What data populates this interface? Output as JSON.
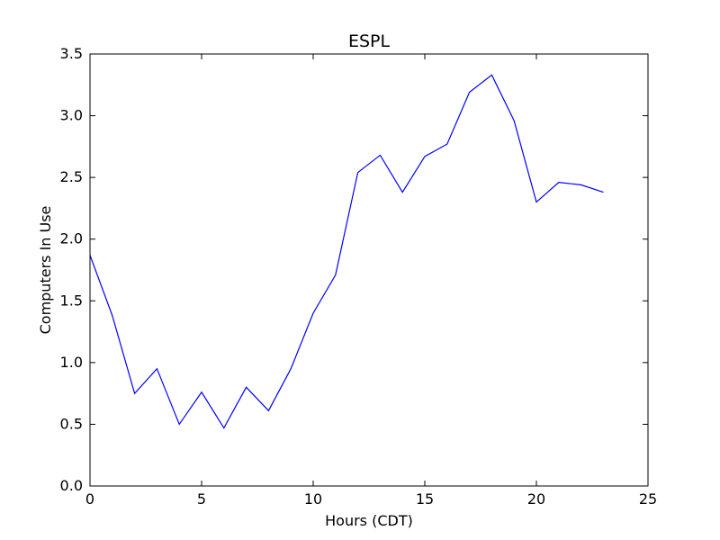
{
  "chart_data": {
    "type": "line",
    "title": "ESPL",
    "xlabel": "Hours (CDT)",
    "ylabel": "Computers In Use",
    "xlim": [
      0,
      25
    ],
    "ylim": [
      0,
      3.5
    ],
    "xticks": [
      "0",
      "5",
      "10",
      "15",
      "20",
      "25"
    ],
    "yticks": [
      "0.0",
      "0.5",
      "1.0",
      "1.5",
      "2.0",
      "2.5",
      "3.0",
      "3.5"
    ],
    "grid": false,
    "line_color": "#0000ff",
    "series": [
      {
        "x": [
          0,
          1,
          2,
          3,
          4,
          5,
          6,
          7,
          8,
          9,
          10,
          11,
          12,
          13,
          14,
          15,
          16,
          17,
          18,
          19,
          20,
          21,
          22,
          23
        ],
        "values": [
          1.87,
          1.38,
          0.75,
          0.95,
          0.5,
          0.76,
          0.47,
          0.8,
          0.61,
          0.95,
          1.4,
          1.71,
          2.54,
          2.68,
          2.38,
          2.67,
          2.77,
          3.19,
          3.33,
          2.96,
          2.3,
          2.46,
          2.44,
          2.38
        ]
      }
    ]
  }
}
